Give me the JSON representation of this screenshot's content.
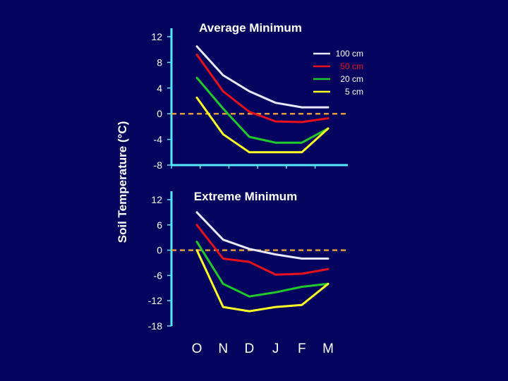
{
  "ylabel": "Soil Temperature (°C)",
  "colors": {
    "background": "#04045e",
    "axis": "#55eaff",
    "zero_line": "#e39a3c",
    "text": "#ffffff"
  },
  "months": [
    "O",
    "N",
    "D",
    "J",
    "F",
    "M"
  ],
  "chart_data": [
    {
      "type": "line",
      "title": "Average Minimum",
      "categories": [
        "O",
        "N",
        "D",
        "J",
        "F",
        "M"
      ],
      "x": [
        0,
        0.5,
        1.5,
        2.5,
        3.5,
        4.5,
        5.5
      ],
      "ylim": [
        -8,
        12
      ],
      "yticks": [
        {
          "v": 12,
          "label": "12"
        },
        {
          "v": 8,
          "label": "8"
        },
        {
          "v": 4,
          "label": "4"
        },
        {
          "v": 0,
          "label": "0"
        },
        {
          "v": -4,
          "label": "-4"
        },
        {
          "v": -8,
          "label": "-8"
        }
      ],
      "zero_line": 0,
      "legend": "top-right",
      "series": [
        {
          "name": "100 cm",
          "color": "#e8e8ff",
          "values": [
            10.5,
            6,
            3.5,
            1.7,
            1,
            1
          ]
        },
        {
          "name": "50 cm",
          "color": "#e8111b",
          "values": [
            9.2,
            3.5,
            0.3,
            -1.2,
            -1.3,
            -0.7
          ]
        },
        {
          "name": "20 cm",
          "color": "#1ecb2a",
          "values": [
            5.6,
            0.8,
            -3.6,
            -4.5,
            -4.5,
            -2.3
          ]
        },
        {
          "name": "5 cm",
          "color": "#ffff26",
          "values": [
            2.5,
            -3.2,
            -6,
            -6,
            -6,
            -2.3
          ]
        }
      ]
    },
    {
      "type": "line",
      "title": "Extreme Minimum",
      "categories": [
        "O",
        "N",
        "D",
        "J",
        "F",
        "M"
      ],
      "x": [
        0,
        0.5,
        1.5,
        2.5,
        3.5,
        4.5,
        5.5
      ],
      "ylim": [
        -18,
        12
      ],
      "yticks": [
        {
          "v": 12,
          "label": "12"
        },
        {
          "v": 6,
          "label": "6"
        },
        {
          "v": 0,
          "label": "0"
        },
        {
          "v": -6,
          "label": "-6"
        },
        {
          "v": -12,
          "label": "-12"
        },
        {
          "v": -18,
          "label": "-18"
        }
      ],
      "zero_line": 0,
      "series": [
        {
          "name": "100 cm",
          "color": "#e8e8ff",
          "values": [
            9,
            2.5,
            0.3,
            -1,
            -2,
            -2
          ]
        },
        {
          "name": "50 cm",
          "color": "#e8111b",
          "values": [
            6,
            -2,
            -2.8,
            -5.8,
            -5.6,
            -4.5
          ]
        },
        {
          "name": "20 cm",
          "color": "#1ecb2a",
          "values": [
            2,
            -8,
            -11,
            -10,
            -8.7,
            -8
          ]
        },
        {
          "name": "5 cm",
          "color": "#ffff26",
          "values": [
            0,
            -13.5,
            -14.5,
            -13.5,
            -13,
            -8
          ]
        }
      ]
    }
  ]
}
